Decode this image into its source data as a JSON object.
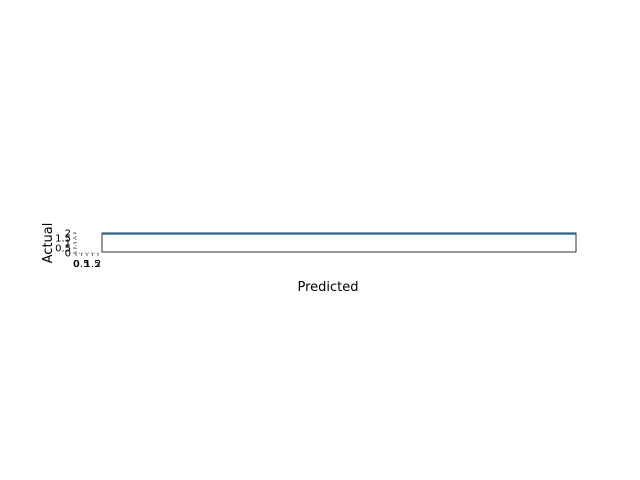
{
  "chart_data": {
    "type": "line",
    "xlabel": "Predicted",
    "ylabel": "Actual",
    "x_tick_labels": [
      "0",
      "0.5",
      "1",
      "1.5",
      "2"
    ],
    "y_tick_labels": [
      "0",
      "0.5",
      "1",
      "1.5",
      "2"
    ],
    "xlim": [
      0,
      2
    ],
    "ylim": [
      0,
      2
    ],
    "grid": false,
    "series": [
      {
        "color": "#1f77b4",
        "points": [
          [
            0,
            1.9
          ],
          [
            2,
            1.9
          ]
        ]
      }
    ]
  }
}
